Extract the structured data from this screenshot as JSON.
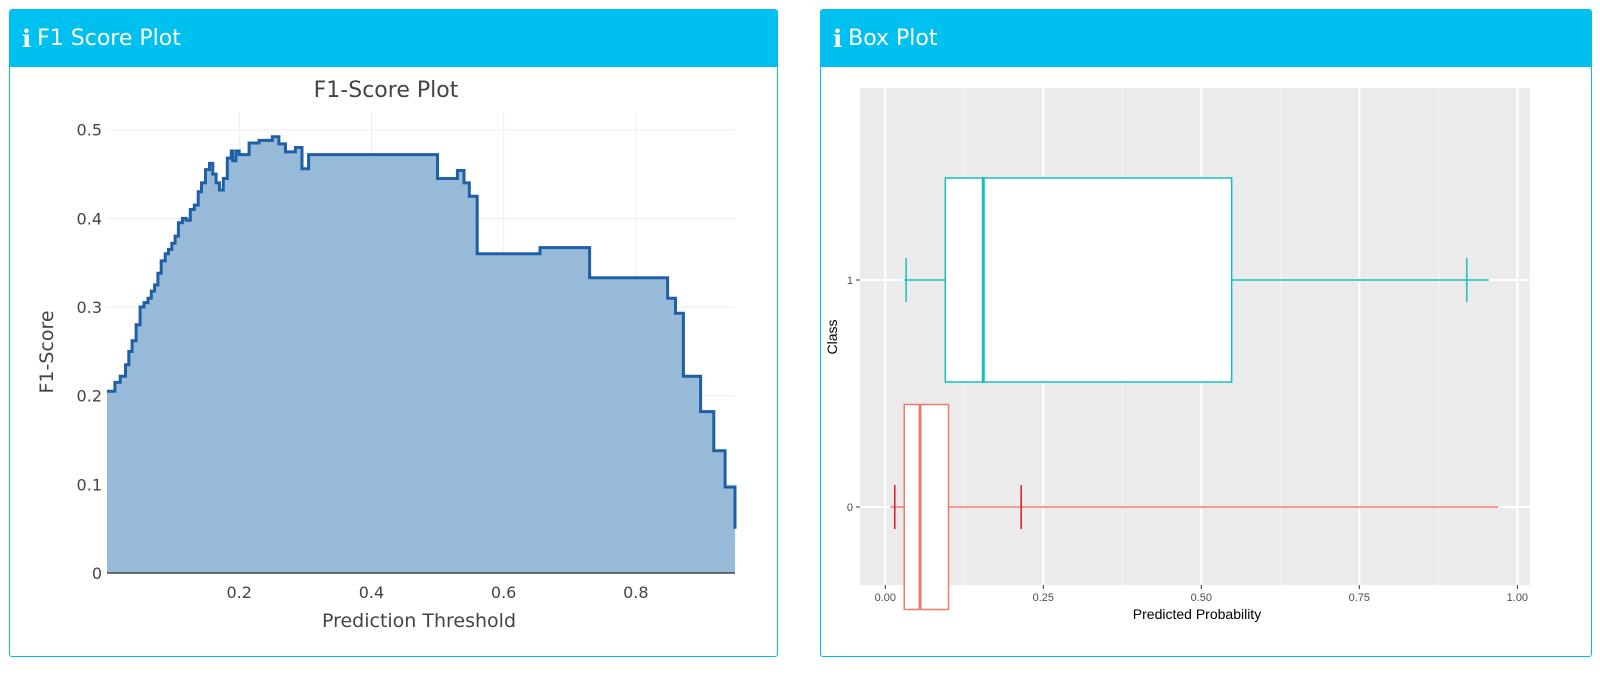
{
  "left_panel": {
    "title": "F1 Score Plot",
    "icon": "info-icon"
  },
  "right_panel": {
    "title": "Box Plot",
    "icon": "info-icon"
  },
  "colors": {
    "header": "#00c0ef",
    "area_fill": "#97bad8",
    "area_line": "#1f5fa6",
    "class1": "#17bebf",
    "class0": "#ef7b70",
    "class0_whisker_mark": "#d7191c",
    "ggplot_bg": "#ebebeb"
  },
  "chart_data": [
    {
      "type": "area",
      "title": "F1-Score Plot",
      "xlabel": "Prediction Threshold",
      "ylabel": "F1-Score",
      "xlim": [
        0.0,
        0.95
      ],
      "ylim": [
        0,
        0.52
      ],
      "xticks": [
        0.2,
        0.4,
        0.6,
        0.8
      ],
      "xtick_labels": [
        "0.2",
        "0.4",
        "0.6",
        "0.8"
      ],
      "yticks": [
        0,
        0.1,
        0.2,
        0.3,
        0.4,
        0.5
      ],
      "ytick_labels": [
        "0",
        "0.1",
        "0.2",
        "0.3",
        "0.4",
        "0.5"
      ],
      "grid": true,
      "step": "hv",
      "x": [
        0.0,
        0.012,
        0.02,
        0.028,
        0.033,
        0.038,
        0.044,
        0.05,
        0.056,
        0.062,
        0.067,
        0.072,
        0.077,
        0.082,
        0.088,
        0.093,
        0.098,
        0.103,
        0.108,
        0.114,
        0.12,
        0.126,
        0.132,
        0.138,
        0.143,
        0.149,
        0.155,
        0.16,
        0.165,
        0.17,
        0.176,
        0.182,
        0.188,
        0.19,
        0.195,
        0.2,
        0.215,
        0.23,
        0.25,
        0.26,
        0.27,
        0.285,
        0.295,
        0.305,
        0.5,
        0.53,
        0.54,
        0.548,
        0.56,
        0.655,
        0.73,
        0.848,
        0.86,
        0.872,
        0.898,
        0.918,
        0.935,
        0.95
      ],
      "y": [
        0.205,
        0.215,
        0.222,
        0.235,
        0.25,
        0.262,
        0.28,
        0.3,
        0.305,
        0.31,
        0.318,
        0.325,
        0.338,
        0.352,
        0.36,
        0.365,
        0.372,
        0.38,
        0.395,
        0.4,
        0.398,
        0.41,
        0.415,
        0.43,
        0.44,
        0.455,
        0.462,
        0.45,
        0.44,
        0.432,
        0.445,
        0.468,
        0.476,
        0.465,
        0.476,
        0.472,
        0.485,
        0.488,
        0.492,
        0.484,
        0.475,
        0.48,
        0.456,
        0.472,
        0.445,
        0.454,
        0.44,
        0.425,
        0.36,
        0.367,
        0.333,
        0.31,
        0.293,
        0.222,
        0.182,
        0.138,
        0.097,
        0.05
      ]
    },
    {
      "type": "box",
      "orientation": "horizontal",
      "xlabel": "Predicted Probability",
      "ylabel": "Class",
      "xlim": [
        -0.04,
        1.02
      ],
      "xticks": [
        0.0,
        0.25,
        0.5,
        0.75,
        1.0
      ],
      "xtick_labels": [
        "0.00",
        "0.25",
        "0.50",
        "0.75",
        "1.00"
      ],
      "categories": [
        "0",
        "1"
      ],
      "grid": true,
      "series": [
        {
          "name": "1",
          "min": 0.03,
          "q1": 0.095,
          "median": 0.155,
          "q3": 0.548,
          "max": 0.955,
          "whisker_marks": [
            0.033,
            0.92
          ]
        },
        {
          "name": "0",
          "min": 0.008,
          "q1": 0.03,
          "median": 0.055,
          "q3": 0.1,
          "max": 0.97,
          "whisker_marks": [
            0.015,
            0.215
          ]
        }
      ]
    }
  ]
}
